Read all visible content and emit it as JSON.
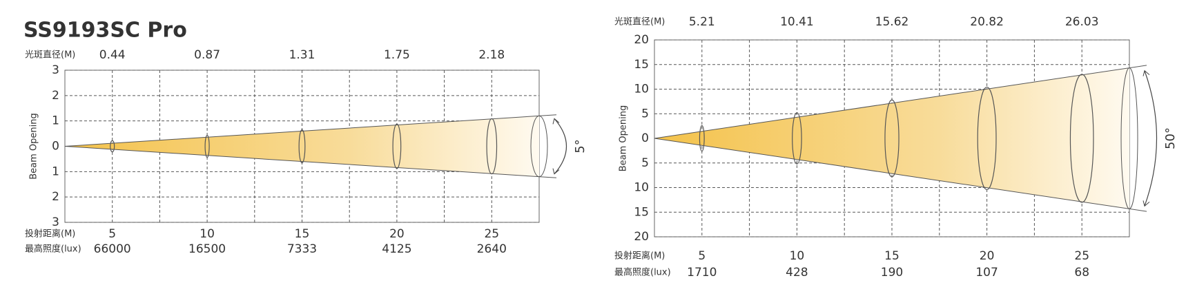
{
  "title": "SS9193SC Pro",
  "chart_data": [
    {
      "type": "beam",
      "y_label": "Beam Opening",
      "diameter_label": "光斑直径(M)",
      "distance_label": "投射距离(M)",
      "illuminance_label": "最高照度(lux)",
      "angle_label": "5°",
      "x": [
        5,
        10,
        15,
        20,
        25
      ],
      "diameters": [
        0.44,
        0.87,
        1.31,
        1.75,
        2.18
      ],
      "illuminance": [
        66000,
        16500,
        7333,
        4125,
        2640
      ],
      "xlim": [
        2.5,
        27.5
      ],
      "xticks": [
        5,
        7.5,
        10,
        12.5,
        15,
        17.5,
        20,
        22.5,
        25
      ],
      "ylim": [
        -3,
        3
      ],
      "yticks": [
        {
          "value": 3,
          "label": "3"
        },
        {
          "value": 2,
          "label": "2"
        },
        {
          "value": 1,
          "label": "1"
        },
        {
          "value": 0,
          "label": "0"
        },
        {
          "value": -1,
          "label": "1"
        },
        {
          "value": -2,
          "label": "2"
        },
        {
          "value": -3,
          "label": "3"
        }
      ],
      "grid": true
    },
    {
      "type": "beam",
      "y_label": "Beam Opening",
      "diameter_label": "光斑直径(M)",
      "distance_label": "投射距离(M)",
      "illuminance_label": "最高照度(lux)",
      "angle_label": "50°",
      "x": [
        5,
        10,
        15,
        20,
        25
      ],
      "diameters": [
        5.21,
        10.41,
        15.62,
        20.82,
        26.03
      ],
      "illuminance": [
        1710,
        428,
        190,
        107,
        68
      ],
      "xlim": [
        2.5,
        27.5
      ],
      "xticks": [
        5,
        7.5,
        10,
        12.5,
        15,
        17.5,
        20,
        22.5,
        25
      ],
      "ylim": [
        -20,
        20
      ],
      "yticks": [
        {
          "value": 20,
          "label": "20"
        },
        {
          "value": 15,
          "label": "15"
        },
        {
          "value": 10,
          "label": "10"
        },
        {
          "value": 5,
          "label": "5"
        },
        {
          "value": 0,
          "label": "0"
        },
        {
          "value": -5,
          "label": "5"
        },
        {
          "value": -10,
          "label": "10"
        },
        {
          "value": -15,
          "label": "15"
        },
        {
          "value": -20,
          "label": "20"
        }
      ],
      "grid": true
    }
  ]
}
